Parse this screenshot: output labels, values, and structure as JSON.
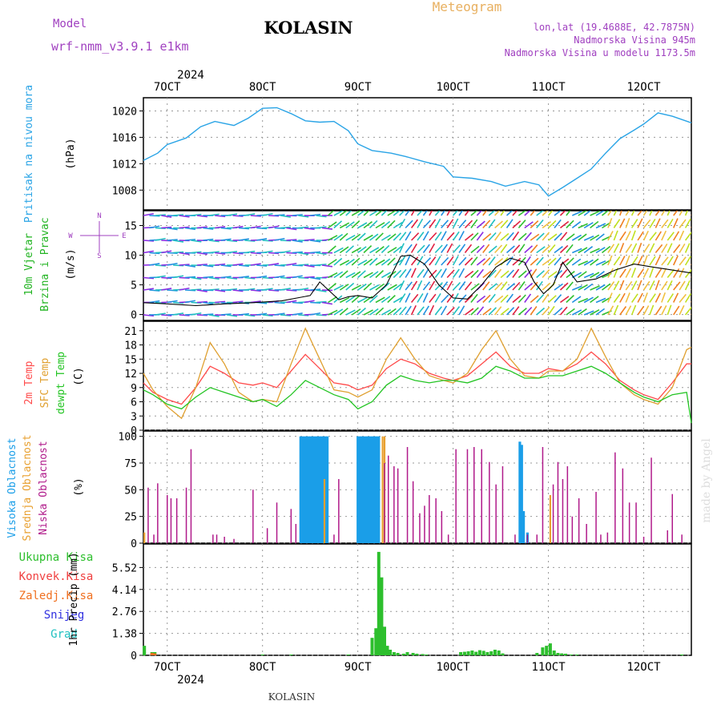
{
  "header": {
    "model_label": "Model",
    "model_name": "wrf-nmm_v3.9.1 e1km",
    "station": "KOLASIN",
    "meteogram_label": "Meteogram",
    "lonlat": "lon,lat (19.4688E, 42.7875N)",
    "altitude": "Nadmorska Visina 945m",
    "model_altitude": "Nadmorska Visina u modelu 1173.5m",
    "footer_station": "KOLASIN",
    "watermark": "made by Angel"
  },
  "colors": {
    "pressure": "#2aa4e6",
    "temp2m": "#ff4a4a",
    "sfc": "#e0a030",
    "dewpt": "#22c422",
    "high_cloud": "#1a9ee8",
    "mid_cloud": "#e8a030",
    "low_cloud": "#b01a8a",
    "precip": "#2dbf2d",
    "label_total": "#2dbf2d",
    "label_conv": "#f04040",
    "label_freezing": "#f07020",
    "label_snow": "#3030e0",
    "label_hail": "#20c0c0",
    "purple": "#a040c0",
    "orange": "#e8b060"
  },
  "time_axis": {
    "year": "2024",
    "days": [
      "7OCT",
      "8OCT",
      "9OCT",
      "10OCT",
      "11OCT",
      "12OCT"
    ],
    "day_start": 6.75,
    "day_end": 12.5
  },
  "chart_data": [
    {
      "panel": "pressure",
      "type": "line",
      "ylabel": [
        "Pritisak na nivou mora",
        "(hPa)"
      ],
      "ylim": [
        1005,
        1022
      ],
      "yticks": [
        "1008",
        "1012",
        "1016",
        "1020"
      ],
      "grid": true,
      "x": [
        6.75,
        6.9,
        7.0,
        7.2,
        7.35,
        7.5,
        7.7,
        7.85,
        8.0,
        8.15,
        8.3,
        8.45,
        8.6,
        8.75,
        8.9,
        9.0,
        9.15,
        9.35,
        9.5,
        9.7,
        9.9,
        10.0,
        10.2,
        10.4,
        10.55,
        10.75,
        10.9,
        11.0,
        11.15,
        11.3,
        11.45,
        11.6,
        11.75,
        11.9,
        12.0,
        12.15,
        12.3,
        12.5
      ],
      "y": [
        1012.5,
        1013.6,
        1014.9,
        1015.9,
        1017.6,
        1018.4,
        1017.8,
        1018.9,
        1020.4,
        1020.5,
        1019.6,
        1018.5,
        1018.3,
        1018.4,
        1017.0,
        1015.0,
        1014.0,
        1013.6,
        1013.1,
        1012.3,
        1011.6,
        1010.0,
        1009.8,
        1009.3,
        1008.6,
        1009.3,
        1008.8,
        1007.1,
        1008.4,
        1009.8,
        1011.2,
        1013.6,
        1015.8,
        1017.1,
        1018.0,
        1019.7,
        1019.2,
        1018.2
      ]
    },
    {
      "panel": "wind",
      "type": "line",
      "ylabel": [
        "10m Vjetar",
        "Brzina i Pravac",
        "(m/s)"
      ],
      "compass": {
        "n": "N",
        "s": "S",
        "e": "E",
        "w": "W",
        "top": "N",
        "left": "W",
        "right": "E",
        "bottom": "S"
      },
      "ylim": [
        -1,
        17.5
      ],
      "yticks": [
        "0",
        "5",
        "10",
        "15"
      ],
      "grid": true,
      "x": [
        6.75,
        7.0,
        7.3,
        7.6,
        7.9,
        8.2,
        8.5,
        8.6,
        8.7,
        8.8,
        8.9,
        9.0,
        9.15,
        9.3,
        9.45,
        9.55,
        9.7,
        9.85,
        10.0,
        10.15,
        10.3,
        10.45,
        10.6,
        10.75,
        10.85,
        10.95,
        11.05,
        11.15,
        11.3,
        11.5,
        11.7,
        11.9,
        12.1,
        12.3,
        12.5
      ],
      "y": [
        2.0,
        1.8,
        1.5,
        1.8,
        2.0,
        2.3,
        3.2,
        5.5,
        4.0,
        2.5,
        3.0,
        3.2,
        2.8,
        5.0,
        9.8,
        10.0,
        8.5,
        5.0,
        2.8,
        2.6,
        5.0,
        8.0,
        9.5,
        8.8,
        5.5,
        3.5,
        5.0,
        8.8,
        5.5,
        6.0,
        7.5,
        8.5,
        8.0,
        7.5,
        7.0
      ]
    },
    {
      "panel": "temperature",
      "type": "line",
      "ylabel": [
        "2m Temp",
        "SFC Temp",
        "dewpt Temp",
        "(C)"
      ],
      "ylim": [
        0,
        23
      ],
      "yticks": [
        "0",
        "3",
        "6",
        "9",
        "12",
        "15",
        "18",
        "21"
      ],
      "grid": true,
      "x": [
        6.75,
        6.85,
        7.0,
        7.15,
        7.3,
        7.45,
        7.6,
        7.75,
        7.9,
        8.0,
        8.15,
        8.3,
        8.45,
        8.6,
        8.75,
        8.9,
        9.0,
        9.15,
        9.3,
        9.45,
        9.6,
        9.75,
        9.9,
        10.0,
        10.15,
        10.3,
        10.45,
        10.6,
        10.75,
        10.9,
        11.0,
        11.15,
        11.3,
        11.45,
        11.6,
        11.75,
        11.9,
        12.0,
        12.15,
        12.3,
        12.45,
        12.5
      ],
      "series": [
        {
          "name": "2m Temp",
          "values": [
            10.0,
            8.0,
            6.5,
            5.5,
            9.0,
            13.5,
            12.0,
            10.0,
            9.5,
            10.0,
            9.0,
            12.5,
            16.0,
            13.0,
            10.0,
            9.5,
            8.5,
            9.5,
            13.0,
            15.0,
            14.0,
            12.0,
            11.0,
            10.5,
            11.5,
            14.0,
            16.5,
            13.5,
            12.0,
            12.0,
            13.0,
            12.5,
            14.0,
            16.5,
            14.0,
            10.5,
            8.5,
            7.5,
            6.5,
            10.0,
            14.0,
            14.0
          ]
        },
        {
          "name": "SFC Temp",
          "values": [
            12.0,
            8.5,
            5.0,
            2.5,
            9.0,
            18.5,
            14.0,
            8.0,
            6.0,
            6.5,
            6.0,
            14.0,
            21.5,
            15.0,
            8.5,
            8.0,
            7.0,
            8.5,
            15.0,
            19.5,
            15.0,
            11.5,
            10.5,
            10.0,
            12.0,
            17.0,
            21.0,
            15.0,
            11.5,
            11.0,
            12.5,
            12.5,
            15.0,
            21.5,
            15.5,
            10.0,
            7.5,
            6.5,
            5.5,
            9.0,
            17.0,
            17.5
          ]
        },
        {
          "name": "dewpt Temp",
          "values": [
            8.5,
            7.5,
            5.5,
            4.5,
            7.0,
            9.0,
            8.0,
            7.0,
            6.0,
            6.5,
            5.0,
            7.5,
            10.5,
            9.0,
            7.5,
            6.5,
            4.5,
            6.0,
            9.5,
            11.5,
            10.5,
            10.0,
            10.5,
            10.5,
            10.0,
            11.0,
            13.5,
            12.5,
            11.0,
            11.0,
            11.5,
            11.5,
            12.5,
            13.5,
            12.0,
            10.0,
            8.0,
            7.0,
            6.0,
            7.5,
            8.0,
            1.5
          ]
        }
      ]
    },
    {
      "panel": "clouds",
      "type": "bar",
      "ylabel": [
        "Visoka Oblacnost",
        "Srednja Oblacnost",
        "Niska Oblacnost",
        "(%)"
      ],
      "ylim": [
        0,
        105
      ],
      "yticks": [
        "0",
        "25",
        "50",
        "75",
        "100"
      ],
      "grid": true,
      "series": [
        {
          "name": "Visoka Oblacnost",
          "x": [
            8.4,
            8.42,
            8.44,
            8.46,
            8.48,
            8.5,
            8.52,
            8.54,
            8.56,
            8.58,
            8.6,
            8.62,
            8.64,
            8.66,
            8.68,
            9.0,
            9.02,
            9.04,
            9.06,
            9.08,
            9.1,
            9.12,
            9.14,
            9.16,
            9.18,
            9.2,
            9.22,
            10.7,
            10.72,
            10.74,
            10.78
          ],
          "values": [
            100,
            100,
            100,
            100,
            100,
            100,
            100,
            100,
            100,
            100,
            100,
            100,
            100,
            100,
            100,
            100,
            100,
            100,
            100,
            100,
            100,
            100,
            100,
            100,
            100,
            100,
            100,
            95,
            92,
            30,
            10
          ]
        },
        {
          "name": "Srednja Oblacnost",
          "x": [
            6.76,
            8.65,
            9.26,
            9.28,
            11.02
          ],
          "values": [
            10,
            60,
            100,
            100,
            45
          ]
        },
        {
          "name": "Niska Oblacnost",
          "x": [
            6.8,
            6.86,
            6.9,
            7.0,
            7.04,
            7.1,
            7.2,
            7.25,
            7.48,
            7.52,
            7.6,
            7.7,
            7.9,
            8.05,
            8.15,
            8.3,
            8.35,
            8.75,
            8.8,
            9.28,
            9.32,
            9.38,
            9.42,
            9.52,
            9.58,
            9.65,
            9.7,
            9.75,
            9.82,
            9.88,
            9.95,
            10.03,
            10.15,
            10.22,
            10.3,
            10.38,
            10.45,
            10.52,
            10.65,
            10.78,
            10.88,
            10.94,
            11.05,
            11.1,
            11.15,
            11.2,
            11.25,
            11.32,
            11.4,
            11.5,
            11.55,
            11.62,
            11.7,
            11.78,
            11.85,
            11.92,
            12.0,
            12.08,
            12.25,
            12.3,
            12.4
          ],
          "values": [
            52,
            8,
            56,
            45,
            42,
            42,
            52,
            88,
            8,
            8,
            6,
            4,
            50,
            14,
            38,
            32,
            18,
            8,
            60,
            75,
            82,
            72,
            70,
            90,
            58,
            28,
            35,
            45,
            42,
            30,
            8,
            88,
            88,
            90,
            88,
            76,
            55,
            72,
            8,
            8,
            8,
            90,
            55,
            76,
            60,
            72,
            25,
            42,
            18,
            48,
            8,
            10,
            85,
            70,
            38,
            38,
            6,
            80,
            12,
            46,
            8
          ]
        }
      ]
    },
    {
      "panel": "precipitation",
      "type": "bar",
      "ylabel": [
        "1hr Precip (mm)"
      ],
      "legend": [
        "Ukupna Kisa",
        "Konvek.Kisa",
        "Zaledj.Kisa",
        "Snijeg",
        "Grad"
      ],
      "ylim": [
        0,
        7.0
      ],
      "yticks": [
        "0",
        "1.38",
        "2.76",
        "4.14",
        "5.52"
      ],
      "grid": true,
      "series": [
        {
          "name": "Ukupna Kisa",
          "x": [
            6.76,
            6.84,
            6.87,
            8.0,
            8.3,
            8.9,
            9.15,
            9.19,
            9.22,
            9.25,
            9.28,
            9.31,
            9.34,
            9.38,
            9.42,
            9.48,
            9.52,
            9.58,
            9.62,
            9.68,
            9.72,
            10.08,
            10.12,
            10.16,
            10.2,
            10.24,
            10.28,
            10.32,
            10.36,
            10.4,
            10.44,
            10.48,
            10.52,
            10.88,
            10.94,
            10.98,
            11.02,
            11.06,
            11.1,
            11.14,
            11.18,
            11.24,
            11.3,
            12.4
          ],
          "values": [
            0.6,
            0.2,
            0.2,
            0.05,
            0.05,
            0.05,
            1.1,
            1.7,
            6.5,
            4.9,
            1.8,
            0.6,
            0.35,
            0.2,
            0.15,
            0.1,
            0.2,
            0.15,
            0.1,
            0.08,
            0.05,
            0.2,
            0.22,
            0.25,
            0.3,
            0.22,
            0.32,
            0.28,
            0.2,
            0.25,
            0.35,
            0.3,
            0.12,
            0.15,
            0.5,
            0.6,
            0.75,
            0.3,
            0.15,
            0.12,
            0.1,
            0.05,
            0.05,
            0.05
          ]
        },
        {
          "name": "Zaledj.Kisa",
          "x": [
            6.84,
            6.87
          ],
          "values": [
            0.15,
            0.12
          ]
        }
      ]
    }
  ]
}
